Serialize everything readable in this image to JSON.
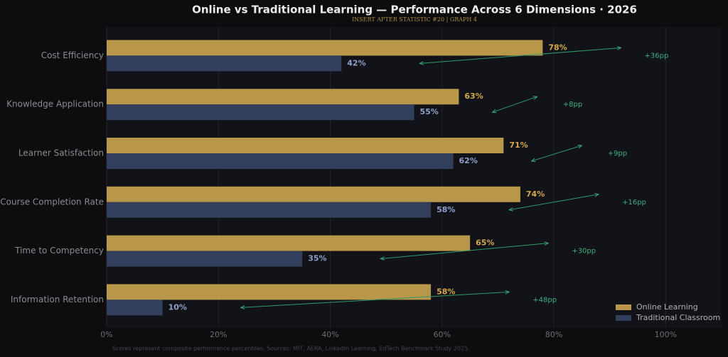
{
  "chart_data": {
    "type": "barh",
    "title": "Online vs Traditional Learning — Performance Across 6 Dimensions · 2026",
    "subtitle": "INSERT AFTER STATISTIC #20  |  GRAPH 4",
    "footnote": "Scores represent composite performance percentiles. Sources: MIT, AERA, LinkedIn Learning, EdTech Benchmark Study 2025.",
    "categories": [
      "Cost Efficiency",
      "Knowledge Application",
      "Learner Satisfaction",
      "Course Completion Rate",
      "Time to Competency",
      "Information Retention"
    ],
    "series": [
      {
        "name": "Online Learning",
        "color": "#b8964a",
        "values": [
          78,
          63,
          71,
          74,
          65,
          58
        ],
        "value_labels": [
          "78%",
          "63%",
          "71%",
          "74%",
          "65%",
          "58%"
        ]
      },
      {
        "name": "Traditional Classroom",
        "color": "#323f5c",
        "values": [
          42,
          55,
          62,
          58,
          35,
          10
        ],
        "value_labels": [
          "42%",
          "55%",
          "62%",
          "58%",
          "35%",
          "10%"
        ]
      }
    ],
    "annotations": [
      "+36pp",
      "+8pp",
      "+9pp",
      "+16pp",
      "+30pp",
      "+48pp"
    ],
    "xlim": [
      0,
      110
    ],
    "xticks": [
      {
        "value": 0,
        "label": "0%"
      },
      {
        "value": 20,
        "label": "20%"
      },
      {
        "value": 40,
        "label": "40%"
      },
      {
        "value": 60,
        "label": "60%"
      },
      {
        "value": 80,
        "label": "80%"
      },
      {
        "value": 100,
        "label": "100%"
      }
    ],
    "grid": true,
    "legend": "lower right"
  }
}
